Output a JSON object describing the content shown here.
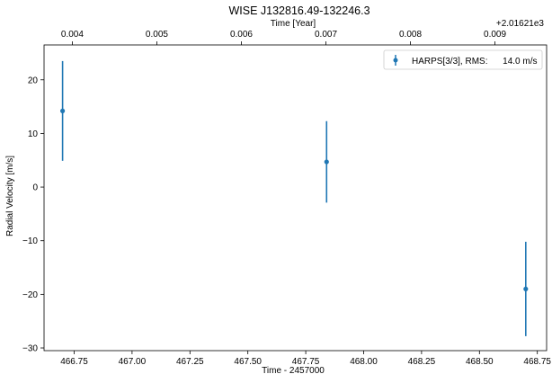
{
  "chart_data": {
    "type": "scatter",
    "title": "WISE J132816.49-132246.3",
    "xlabel": "Time - 2457000",
    "ylabel": "Radial Velocity [m/s]",
    "top_xlabel": "Time [Year]",
    "top_offset_label": "+2.01621e3",
    "xlim": [
      466.62,
      468.79
    ],
    "ylim": [
      -30.5,
      26.5
    ],
    "x_ticks": [
      466.75,
      467.0,
      467.25,
      467.5,
      467.75,
      468.0,
      468.25,
      468.5,
      468.75
    ],
    "x_tick_labels": [
      "466.75",
      "467.00",
      "467.25",
      "467.50",
      "467.75",
      "468.00",
      "468.25",
      "468.50",
      "468.75"
    ],
    "y_ticks": [
      20,
      10,
      0,
      -10,
      -20,
      -30
    ],
    "y_tick_labels": [
      "20",
      "10",
      "0",
      "−10",
      "−20",
      "−30"
    ],
    "top_ticks": [
      {
        "x": 466.742,
        "label": "0.004"
      },
      {
        "x": 467.107,
        "label": "0.005"
      },
      {
        "x": 467.472,
        "label": "0.006"
      },
      {
        "x": 467.837,
        "label": "0.007"
      },
      {
        "x": 468.202,
        "label": "0.008"
      },
      {
        "x": 468.567,
        "label": "0.009"
      }
    ],
    "series": [
      {
        "name": "HARPS[3/3], RMS:      14.0 m/s",
        "color": "#1f77b4",
        "points": [
          {
            "x": 466.7,
            "y": 14.2,
            "err": 9.3
          },
          {
            "x": 467.84,
            "y": 4.7,
            "err": 7.6
          },
          {
            "x": 468.7,
            "y": -19.0,
            "err": 8.8
          }
        ]
      }
    ],
    "legend": {
      "label": "HARPS[3/3], RMS:      14.0 m/s",
      "position": "top-right"
    }
  }
}
